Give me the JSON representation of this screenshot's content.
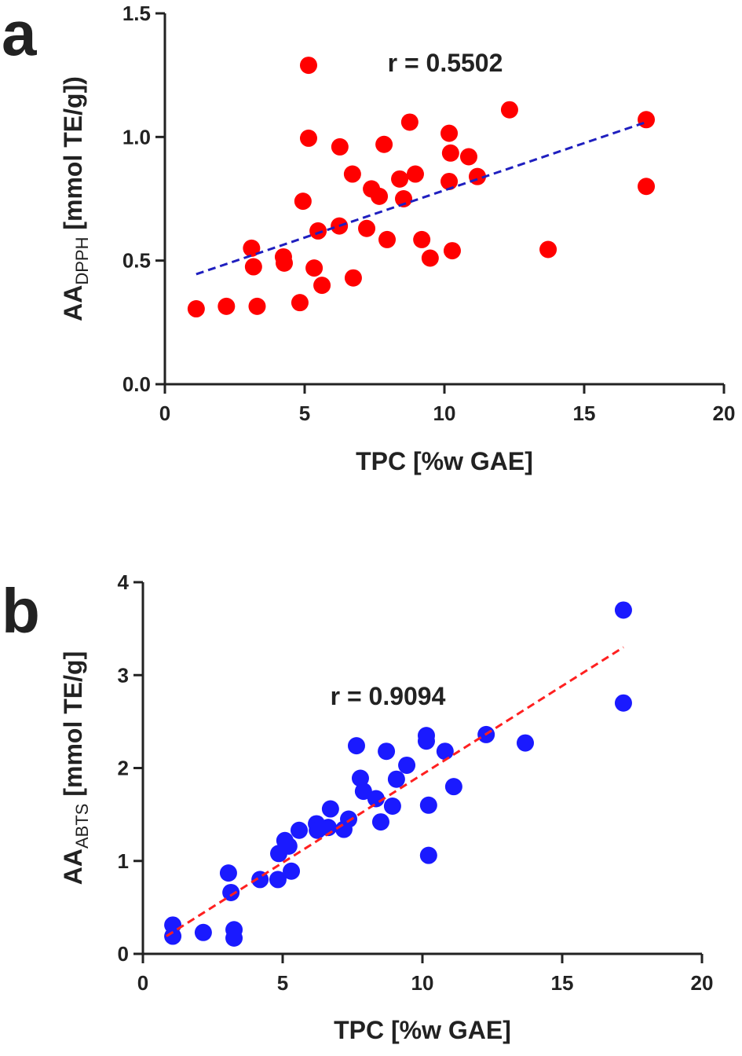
{
  "chart_data": [
    {
      "type": "scatter",
      "panel_label": "a",
      "annotation": "r = 0.5502",
      "x_label": "TPC [%w GAE]",
      "y_label": "AA",
      "y_label_sub": "DPPH",
      "y_label_rest": " [mmol TE/g])",
      "color": "#ff0000",
      "trend_color": "#1f1fbf",
      "x": [
        1.12,
        2.2,
        3.3,
        3.1,
        3.17,
        4.24,
        4.27,
        5.14,
        5.14,
        4.94,
        4.83,
        5.34,
        5.48,
        5.62,
        6.24,
        6.26,
        6.71,
        6.74,
        7.22,
        7.39,
        7.67,
        7.84,
        7.95,
        8.4,
        8.54,
        8.76,
        8.96,
        9.19,
        9.49,
        10.17,
        10.17,
        10.22,
        10.28,
        10.87,
        11.18,
        12.33,
        13.71,
        17.22,
        17.22
      ],
      "y": [
        0.305,
        0.315,
        0.315,
        0.55,
        0.475,
        0.515,
        0.49,
        1.29,
        0.995,
        0.74,
        0.33,
        0.47,
        0.62,
        0.4,
        0.64,
        0.96,
        0.85,
        0.43,
        0.63,
        0.79,
        0.76,
        0.97,
        0.585,
        0.83,
        0.75,
        1.06,
        0.85,
        0.585,
        0.51,
        1.015,
        0.82,
        0.935,
        0.54,
        0.92,
        0.84,
        1.11,
        0.545,
        1.07,
        0.8
      ],
      "trend_x": [
        1.12,
        17.22
      ],
      "trend_y": [
        0.445,
        1.06
      ],
      "xlim": [
        0,
        20
      ],
      "ylim": [
        0,
        1.5
      ],
      "xticks": [
        0,
        5,
        10,
        15,
        20
      ],
      "yticks": [
        {
          "value": 0,
          "label": "0.0"
        },
        {
          "value": 0.5,
          "label": "0.5"
        },
        {
          "value": 1,
          "label": "1.0"
        },
        {
          "value": 1.5,
          "label": "1.5"
        }
      ]
    },
    {
      "type": "scatter",
      "panel_label": "b",
      "annotation": "r = 0.9094",
      "x_label": "TPC [%w GAE]",
      "y_label": "AA",
      "y_label_sub": "ABTS",
      "y_label_rest": " [mmol TE/g]",
      "color": "#1a1aff",
      "trend_color": "#ff2020",
      "x": [
        1.07,
        1.07,
        2.16,
        3.06,
        3.15,
        3.26,
        3.26,
        4.19,
        4.83,
        4.86,
        5.08,
        5.22,
        5.31,
        5.59,
        6.21,
        6.24,
        6.71,
        6.63,
        7.19,
        7.36,
        7.64,
        7.78,
        7.89,
        8.34,
        8.51,
        8.71,
        8.93,
        9.07,
        9.44,
        10.14,
        10.14,
        10.22,
        10.22,
        10.81,
        11.12,
        12.28,
        13.68,
        17.19,
        17.19
      ],
      "y": [
        0.31,
        0.19,
        0.23,
        0.87,
        0.66,
        0.26,
        0.17,
        0.8,
        0.8,
        1.08,
        1.22,
        1.16,
        0.89,
        1.33,
        1.4,
        1.33,
        1.56,
        1.36,
        1.34,
        1.45,
        2.24,
        1.89,
        1.75,
        1.67,
        1.42,
        2.18,
        1.59,
        1.88,
        2.03,
        2.35,
        2.29,
        1.6,
        1.06,
        2.18,
        1.8,
        2.36,
        2.27,
        3.7,
        2.7
      ],
      "trend_x": [
        0.84,
        17.19
      ],
      "trend_y": [
        0.19,
        3.3
      ],
      "xlim": [
        0,
        20
      ],
      "ylim": [
        0,
        4
      ],
      "xticks": [
        0,
        5,
        10,
        15,
        20
      ],
      "yticks": [
        0,
        1,
        2,
        3,
        4
      ]
    }
  ]
}
